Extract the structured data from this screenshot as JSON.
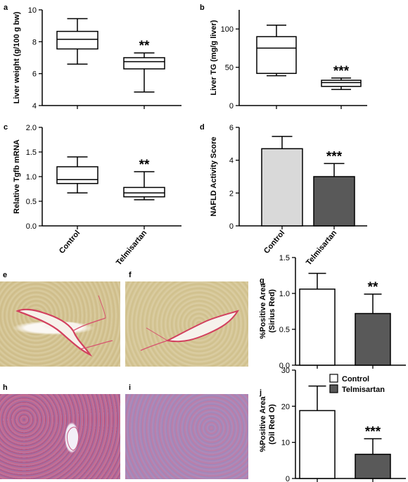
{
  "figure": {
    "groups": [
      "Control",
      "Telmisartan"
    ],
    "colors": {
      "control": "#ffffff",
      "telmisartan_dark": "#595959",
      "nafld_control": "#d9d9d9",
      "stroke": "#000000"
    }
  },
  "chart_data": [
    {
      "panel": "a",
      "type": "box",
      "ylabel": "Liver weight (g/100 g bw)",
      "ylim": [
        4,
        10
      ],
      "yticks": [
        4,
        6,
        8,
        10
      ],
      "categories": [
        "Control",
        "Telmisartan"
      ],
      "boxes": [
        {
          "min": 6.6,
          "q1": 7.55,
          "median": 8.15,
          "q3": 8.65,
          "max": 9.45
        },
        {
          "min": 4.85,
          "q1": 6.3,
          "median": 6.75,
          "q3": 7.0,
          "max": 7.3
        }
      ],
      "annotations": [
        {
          "text": "**",
          "category": 1
        }
      ]
    },
    {
      "panel": "b",
      "type": "box",
      "ylabel": "Liver TG (mg/g liver)",
      "ylim": [
        0,
        125
      ],
      "yticks": [
        0,
        50,
        100
      ],
      "categories": [
        "Control",
        "Telmisartan"
      ],
      "boxes": [
        {
          "min": 39,
          "q1": 42,
          "median": 75,
          "q3": 90,
          "max": 105
        },
        {
          "min": 21,
          "q1": 25,
          "median": 30,
          "q3": 33,
          "max": 36
        }
      ],
      "annotations": [
        {
          "text": "***",
          "category": 1
        }
      ]
    },
    {
      "panel": "c",
      "type": "box",
      "ylabel": "Relative Tgfb mRNA",
      "ylim": [
        0,
        2.0
      ],
      "yticks": [
        "0.0",
        "0.5",
        "1.0",
        "1.5",
        "2.0"
      ],
      "xticklabels": [
        "Control",
        "Telmisartan"
      ],
      "categories": [
        "Control",
        "Telmisartan"
      ],
      "boxes": [
        {
          "min": 0.67,
          "q1": 0.86,
          "median": 0.94,
          "q3": 1.2,
          "max": 1.4
        },
        {
          "min": 0.53,
          "q1": 0.59,
          "median": 0.67,
          "q3": 0.78,
          "max": 1.1
        }
      ],
      "annotations": [
        {
          "text": "**",
          "category": 1
        }
      ]
    },
    {
      "panel": "d",
      "type": "bar",
      "ylabel": "NAFLD Activity Score",
      "ylim": [
        0,
        6
      ],
      "yticks": [
        0,
        2,
        4,
        6
      ],
      "xticklabels": [
        "Control",
        "Telmisartan"
      ],
      "categories": [
        "Control",
        "Telmisartan"
      ],
      "values": [
        4.7,
        3.0
      ],
      "errors": [
        0.75,
        0.8
      ],
      "annotations": [
        {
          "text": "***",
          "category": 1
        }
      ]
    },
    {
      "panel": "g",
      "type": "bar",
      "ylabel": "%Positive Area (Sirius Red)",
      "ylabel_lines": [
        "%Positive Area",
        "(Sirius Red)"
      ],
      "ylim": [
        0,
        1.5
      ],
      "yticks": [
        "0.0",
        "0.5",
        "1.0",
        "1.5"
      ],
      "categories": [
        "Control",
        "Telmisartan"
      ],
      "values": [
        1.06,
        0.72
      ],
      "errors": [
        0.22,
        0.27
      ],
      "annotations": [
        {
          "text": "**",
          "category": 1
        }
      ]
    },
    {
      "panel": "j",
      "type": "bar",
      "ylabel": "%Positive Area (Oil Red O)",
      "ylabel_lines": [
        "%Positive Area",
        "(Oil Red O)"
      ],
      "ylim": [
        0,
        30
      ],
      "yticks": [
        0,
        10,
        20,
        30
      ],
      "categories": [
        "Control",
        "Telmisartan"
      ],
      "values": [
        18.8,
        6.7
      ],
      "errors": [
        6.8,
        4.3
      ],
      "legend": [
        "Control",
        "Telmisartan"
      ],
      "legend_position": "top-right",
      "annotations": [
        {
          "text": "***",
          "category": 1
        }
      ]
    }
  ],
  "micrographs": [
    {
      "panel": "e",
      "stain": "Sirius Red",
      "group": "Control"
    },
    {
      "panel": "f",
      "stain": "Sirius Red",
      "group": "Telmisartan"
    },
    {
      "panel": "h",
      "stain": "Oil Red O",
      "group": "Control"
    },
    {
      "panel": "i",
      "stain": "Oil Red O",
      "group": "Telmisartan"
    }
  ]
}
